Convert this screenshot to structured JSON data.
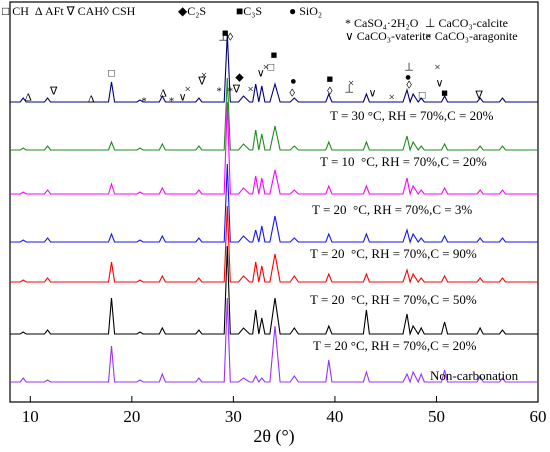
{
  "chart_data": {
    "type": "line",
    "xlabel": "2θ (°)",
    "xlim": [
      8,
      60
    ],
    "xticks": [
      10,
      20,
      30,
      40,
      50,
      60
    ],
    "ylim": [
      0,
      100
    ],
    "legend": [
      "□ CH  Δ AFt ∇ CAH◊ CSH",
      "◆C₂S",
      "■C₃S",
      "● SiO₂",
      "* CaSO₄·2H₂O",
      "⊥ CaCO₃-calcite",
      "∨ CaCO₃-vaterite",
      "× CaCO₃-aragonite"
    ],
    "x": [
      8,
      9.0,
      9.3,
      9.6,
      11.4,
      11.7,
      12.0,
      15,
      17.7,
      18.0,
      18.3,
      20.5,
      20.8,
      21.1,
      22.7,
      23.0,
      23.3,
      25,
      26.3,
      26.6,
      26.9,
      28.8,
      29.1,
      29.4,
      29.7,
      30.5,
      31.0,
      31.6,
      31.9,
      32.2,
      32.5,
      32.8,
      33.1,
      33.6,
      34.1,
      34.6,
      35.6,
      36.0,
      36.4,
      39.1,
      39.4,
      39.7,
      42.8,
      43.1,
      43.4,
      46.7,
      47.1,
      47.4,
      47.7,
      48.2,
      48.5,
      48.8,
      50.5,
      50.8,
      51.1,
      54.0,
      54.3,
      54.6,
      56.2,
      56.5,
      56.8,
      60
    ],
    "series": [
      {
        "name": "Non-carbonation",
        "color": "#9b30ff",
        "values": [
          5,
          5,
          6,
          5,
          5,
          5.5,
          5,
          5,
          5,
          14,
          5,
          5,
          5.5,
          5,
          5,
          7,
          5,
          5,
          5,
          6,
          5,
          5,
          5,
          26,
          5,
          5,
          6,
          5,
          5,
          6.5,
          5,
          6,
          5,
          5,
          19,
          5,
          5,
          6.5,
          5,
          5,
          10.5,
          5,
          5,
          7.5,
          5,
          5,
          7,
          5,
          7.5,
          5,
          7,
          5,
          5,
          8,
          5,
          5,
          6.5,
          5,
          5,
          6,
          5,
          5
        ]
      },
      {
        "name": "T = 20 °C, RH = 70%,C = 20%",
        "color": "#000000",
        "values": [
          17,
          17,
          17.5,
          17,
          17,
          18,
          17,
          17,
          17,
          26,
          17,
          17,
          17.5,
          17,
          17,
          18.5,
          17,
          17,
          17,
          18,
          17,
          17,
          17,
          39,
          17,
          17,
          18.5,
          17,
          17,
          23,
          17,
          21,
          17,
          17,
          26,
          17,
          17,
          18.5,
          17,
          17,
          19,
          17,
          17,
          23,
          17,
          17,
          22,
          17,
          19,
          17,
          18.5,
          17,
          17,
          20,
          17,
          17,
          18.5,
          17,
          17,
          18,
          17,
          17
        ]
      },
      {
        "name": "T = 20  °C, RH = 70%,C = 50%",
        "color": "#ff0000",
        "values": [
          30,
          30,
          30.5,
          30,
          30,
          31,
          30,
          30,
          30,
          35,
          30,
          30,
          30.5,
          30,
          30,
          31.5,
          30,
          30,
          30,
          31,
          30,
          30,
          30,
          49,
          30,
          30,
          31.5,
          30,
          30,
          35,
          30,
          34,
          30,
          30,
          37,
          30,
          30,
          31.5,
          30,
          30,
          32,
          30,
          30,
          32,
          30,
          30,
          33,
          30,
          32,
          30,
          31,
          30,
          30,
          31.5,
          30,
          30,
          31,
          30,
          30,
          31,
          30,
          30
        ]
      },
      {
        "name": "T = 20  °C, RH = 70%,C = 90%",
        "color": "#1414ff",
        "values": [
          40,
          40,
          40.5,
          40,
          40,
          41,
          40,
          40,
          40,
          42,
          40,
          40,
          40.5,
          40,
          40,
          41.5,
          40,
          40,
          40,
          41,
          40,
          40,
          40,
          59.5,
          40,
          40,
          41.5,
          40,
          40,
          43,
          40,
          44,
          40,
          40,
          46.5,
          40,
          40,
          41,
          40,
          40,
          42,
          40,
          40,
          42,
          40,
          40,
          43,
          40,
          42,
          40,
          41,
          40,
          40,
          41.5,
          40,
          40,
          41,
          40,
          40,
          41,
          40,
          40
        ]
      },
      {
        "name": "T = 20  °C, RH = 70%,C = 3%",
        "color": "#ff00ff",
        "values": [
          52,
          52,
          52.5,
          52,
          52,
          53,
          52,
          52,
          52,
          54.5,
          52,
          52,
          52.5,
          52,
          52,
          53.5,
          52,
          52,
          52,
          53,
          52,
          52,
          52,
          75,
          52,
          52,
          53.5,
          52,
          52,
          56.5,
          52,
          56,
          52,
          52,
          58,
          52,
          52,
          53,
          52,
          52,
          54,
          52,
          52,
          54,
          52,
          52,
          56,
          52,
          54,
          52,
          53,
          52,
          52,
          53.5,
          52,
          52,
          53,
          52,
          52,
          53,
          52,
          52
        ]
      },
      {
        "name": "T = 10  °C, RH = 70%,C = 20%",
        "color": "#1e8c1e",
        "values": [
          63,
          63,
          63.5,
          63,
          63,
          64,
          63,
          63,
          63,
          65,
          63,
          63,
          63.5,
          63,
          63,
          64.5,
          63,
          63,
          63,
          64,
          63,
          63,
          63,
          81,
          63,
          63,
          64.5,
          63,
          63,
          68,
          63,
          67,
          63,
          63,
          69,
          63,
          63,
          64,
          63,
          63,
          65,
          63,
          63,
          65,
          63,
          63,
          66.5,
          63,
          65,
          63,
          64,
          63,
          63,
          64.5,
          63,
          63,
          64,
          63,
          63,
          64,
          63,
          63
        ]
      },
      {
        "name": "T = 30 °C, RH = 70%,C = 20%",
        "color": "#00007f",
        "values": [
          75,
          75,
          76,
          75,
          75,
          76,
          75,
          75,
          75,
          80,
          75,
          75,
          75.5,
          75,
          75,
          76.5,
          75,
          75,
          75,
          76,
          75,
          75,
          75,
          92,
          75,
          75,
          76.5,
          75,
          75,
          79.5,
          75,
          79,
          75,
          75,
          79.5,
          75,
          75,
          76,
          75,
          75,
          77,
          75,
          75,
          77,
          75,
          75,
          78,
          75,
          77,
          75,
          76,
          75,
          75,
          76.5,
          75,
          75,
          76,
          75,
          75,
          76,
          75,
          75
        ]
      }
    ],
    "annotations": [
      {
        "text": "Δ",
        "x": 9.8,
        "y": 76
      },
      {
        "text": "∇",
        "x": 12.3,
        "y": 77.5
      },
      {
        "text": "Δ",
        "x": 16.0,
        "y": 75.5
      },
      {
        "text": "□",
        "x": 18.0,
        "y": 82
      },
      {
        "text": "*",
        "x": 21.2,
        "y": 75
      },
      {
        "text": "Δ",
        "x": 23.1,
        "y": 77
      },
      {
        "text": "*",
        "x": 23.9,
        "y": 75
      },
      {
        "text": "∨",
        "x": 25.0,
        "y": 76
      },
      {
        "text": "×",
        "x": 25.5,
        "y": 78
      },
      {
        "text": "∇",
        "x": 26.9,
        "y": 80
      },
      {
        "text": "×",
        "x": 27.1,
        "y": 81.5
      },
      {
        "text": "*",
        "x": 28.6,
        "y": 77.5
      },
      {
        "text": "⊥",
        "x": 29.0,
        "y": 91
      },
      {
        "text": "■",
        "x": 29.2,
        "y": 92
      },
      {
        "text": "◊",
        "x": 29.7,
        "y": 91
      },
      {
        "text": "*",
        "x": 29.7,
        "y": 77.5
      },
      {
        "text": "∇",
        "x": 30.3,
        "y": 78
      },
      {
        "text": "◆",
        "x": 30.6,
        "y": 81
      },
      {
        "text": "×",
        "x": 31.7,
        "y": 78
      },
      {
        "text": "∨",
        "x": 32.7,
        "y": 82
      },
      {
        "text": "×",
        "x": 33.2,
        "y": 83.5
      },
      {
        "text": "□",
        "x": 33.7,
        "y": 83.5
      },
      {
        "text": "■",
        "x": 34.0,
        "y": 86.5
      },
      {
        "text": "●",
        "x": 35.9,
        "y": 80
      },
      {
        "text": "◊",
        "x": 35.8,
        "y": 77
      },
      {
        "text": "■",
        "x": 39.5,
        "y": 80.5
      },
      {
        "text": "◊",
        "x": 39.5,
        "y": 77.5
      },
      {
        "text": "⊥",
        "x": 41.4,
        "y": 78
      },
      {
        "text": "×",
        "x": 41.6,
        "y": 79.5
      },
      {
        "text": "∨",
        "x": 43.7,
        "y": 77
      },
      {
        "text": "×",
        "x": 45.6,
        "y": 76
      },
      {
        "text": "⊥",
        "x": 47.3,
        "y": 83.5
      },
      {
        "text": "●",
        "x": 47.2,
        "y": 81
      },
      {
        "text": "◊",
        "x": 47.3,
        "y": 79
      },
      {
        "text": "□",
        "x": 48.6,
        "y": 76.5
      },
      {
        "text": "×",
        "x": 50.1,
        "y": 83.5
      },
      {
        "text": "∨",
        "x": 50.3,
        "y": 79.5
      },
      {
        "text": "■",
        "x": 50.8,
        "y": 77
      },
      {
        "text": "∇",
        "x": 54.2,
        "y": 76.5
      }
    ]
  }
}
